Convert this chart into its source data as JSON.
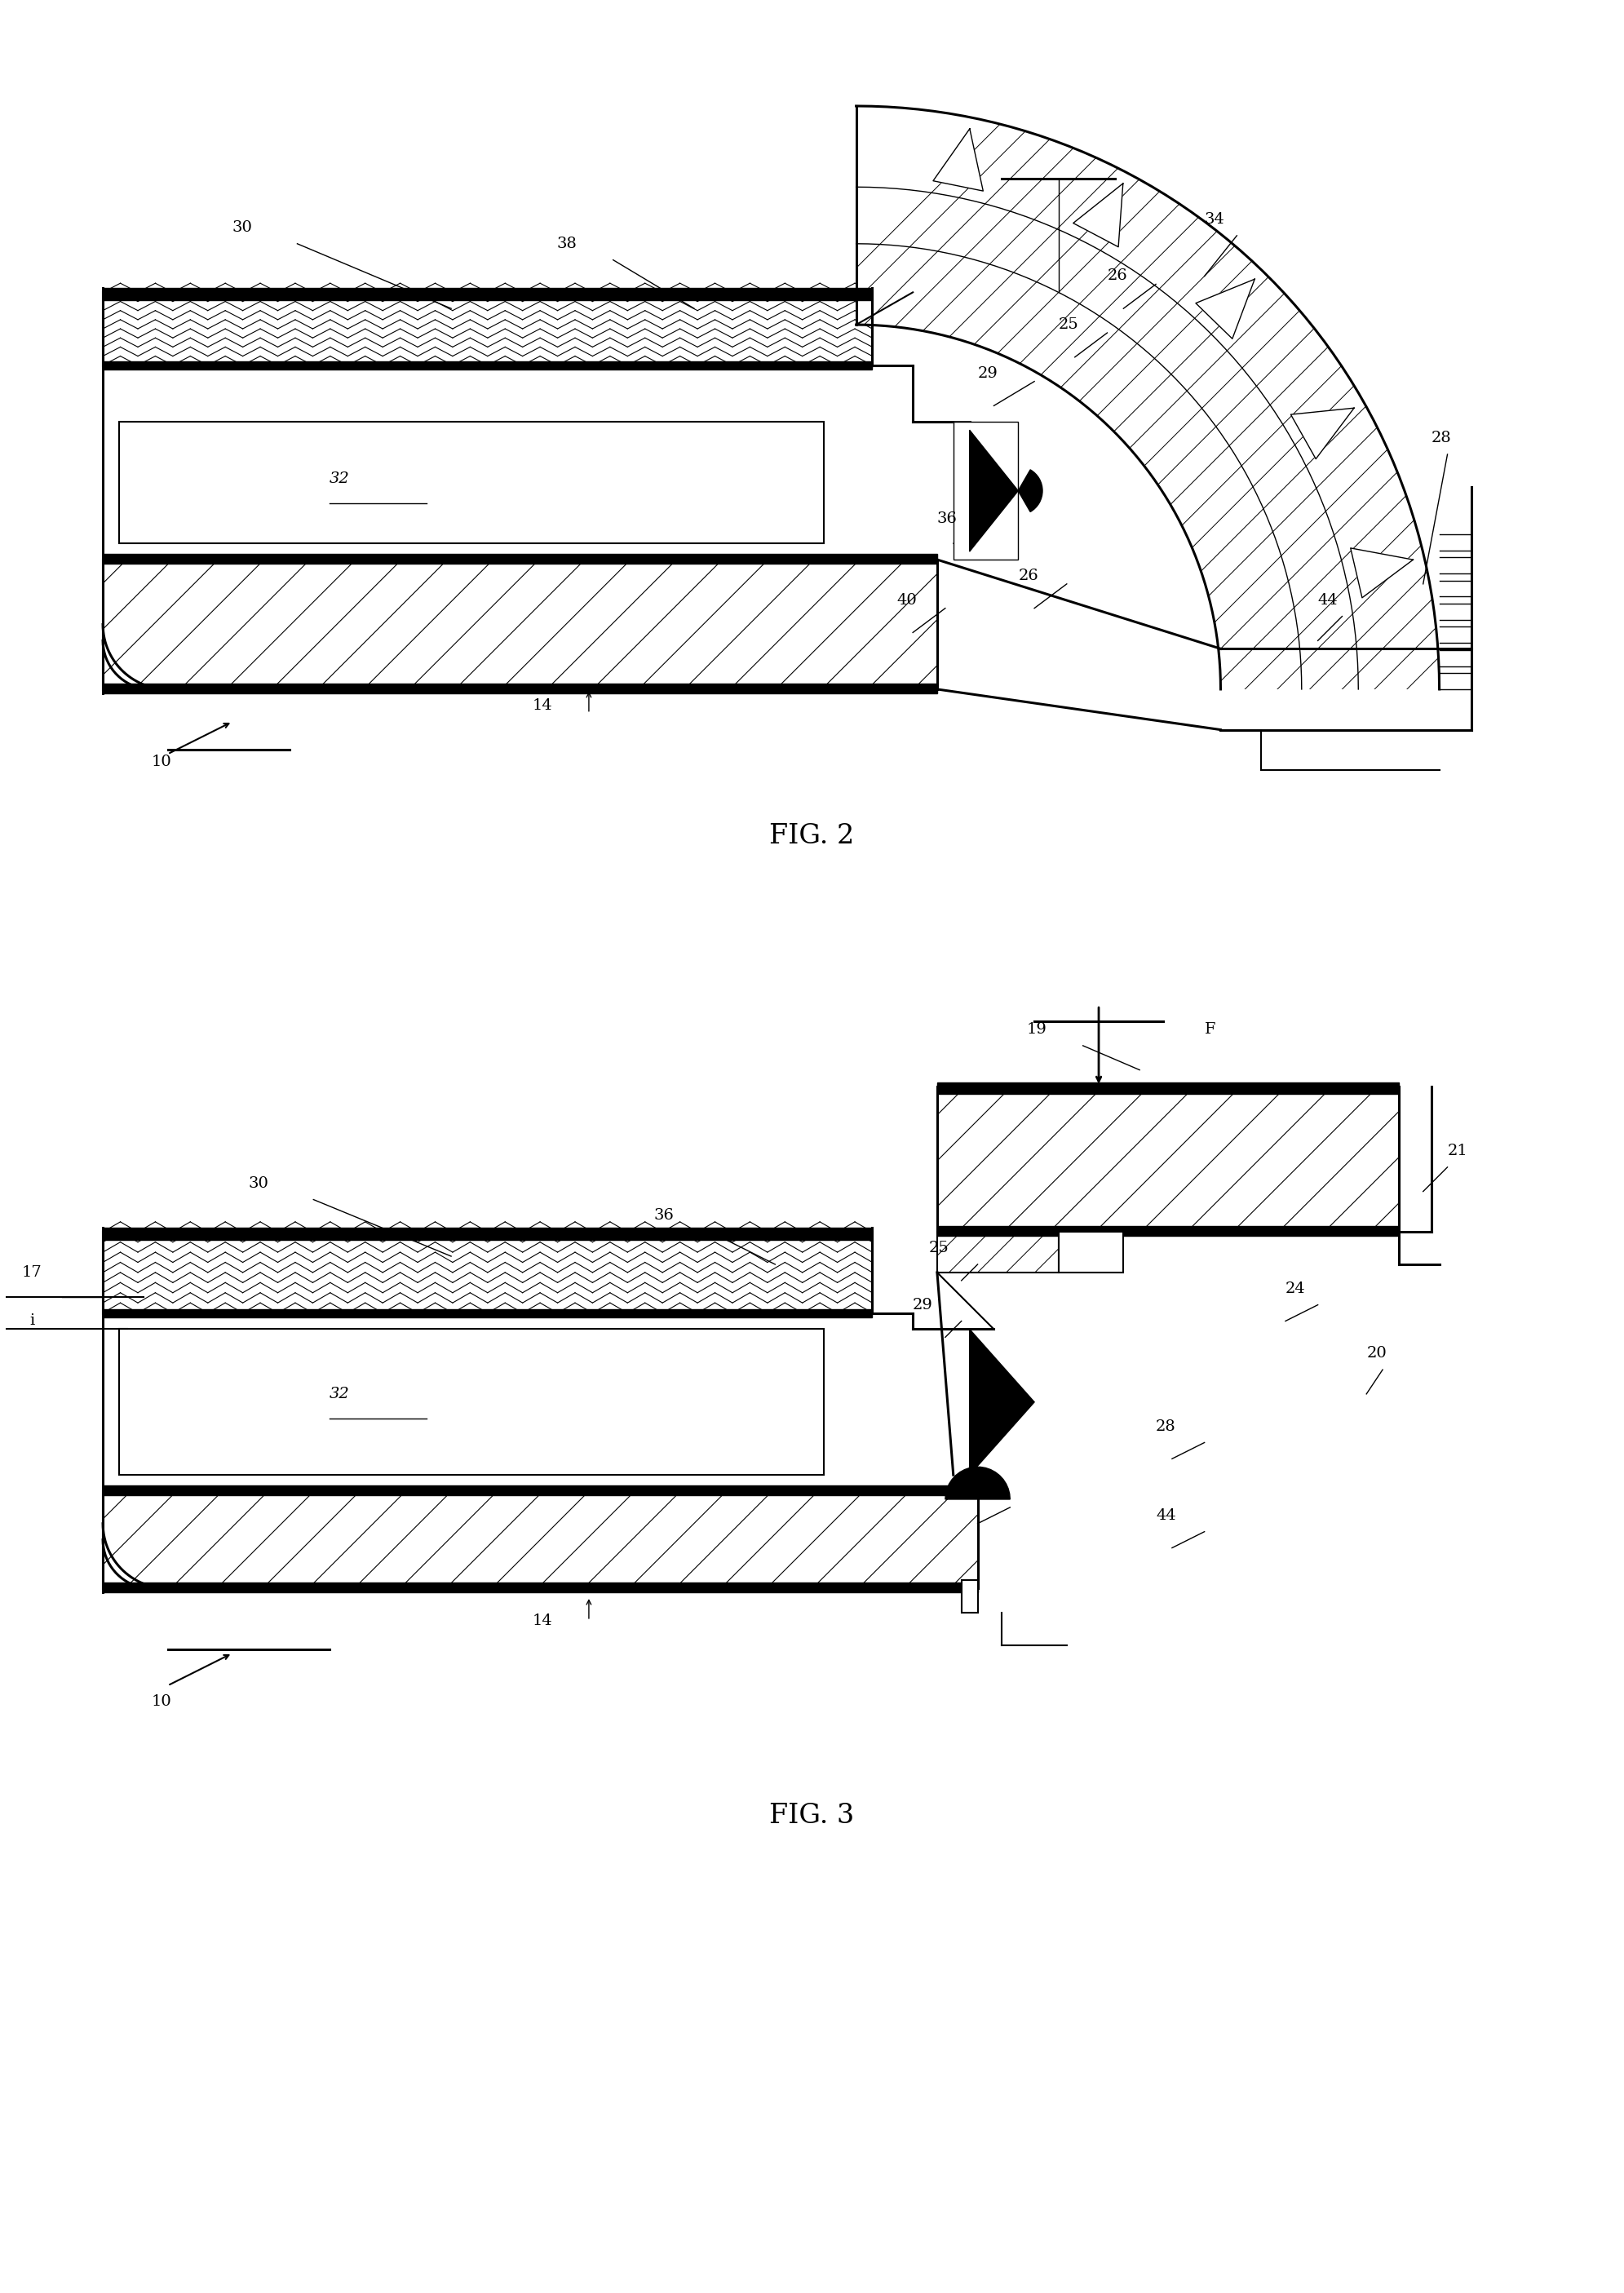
{
  "bg_color": "#ffffff",
  "fig2_title": "FIG. 2",
  "fig3_title": "FIG. 3",
  "lw_thick": 2.2,
  "lw_med": 1.5,
  "lw_thin": 1.0,
  "label_fontsize": 14,
  "title_fontsize": 24
}
